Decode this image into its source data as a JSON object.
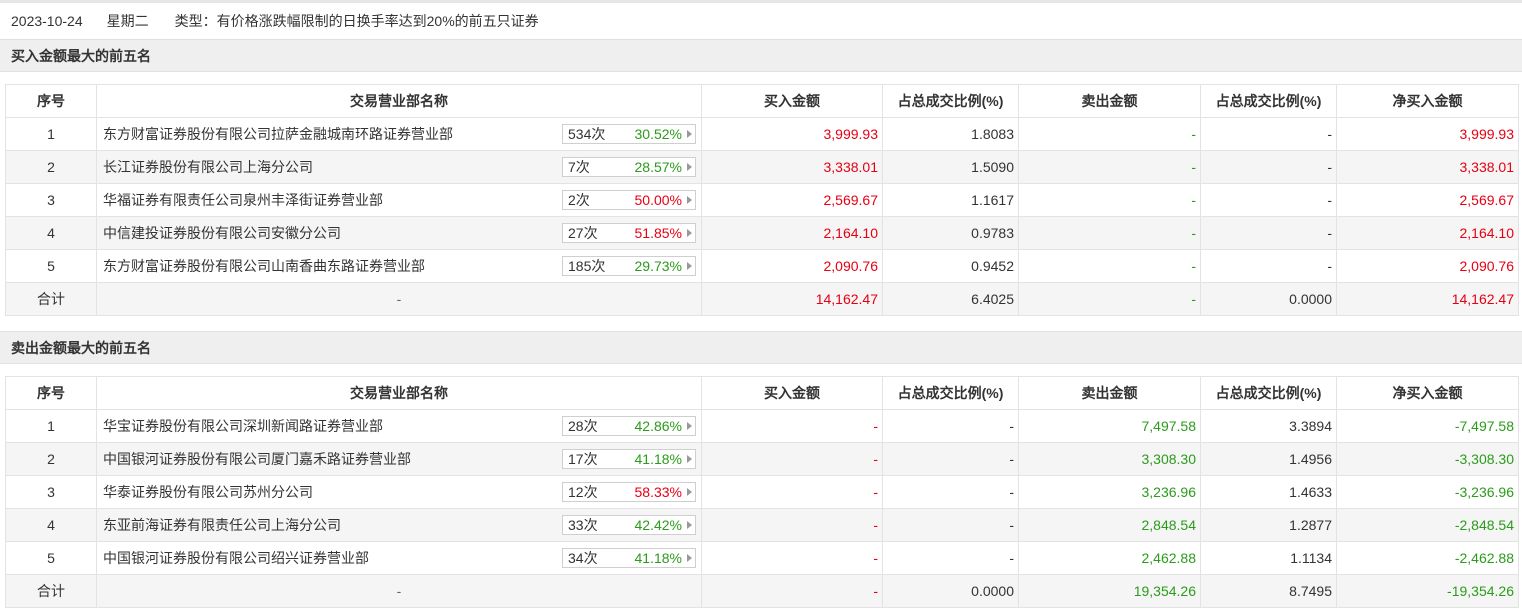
{
  "info": {
    "date": "2023-10-24",
    "weekday": "星期二",
    "type_text": "类型：有价格涨跌幅限制的日换手率达到20%的前五只证券"
  },
  "columns": [
    "序号",
    "交易营业部名称",
    "买入金额",
    "占总成交比例(%)",
    "卖出金额",
    "占总成交比例(%)",
    "净买入金额"
  ],
  "colors": {
    "up": "#e60012",
    "down": "#2b9b1b"
  },
  "buy_section": {
    "title": "买入金额最大的前五名",
    "rows": [
      {
        "no": "1",
        "name": "东方财富证券股份有限公司拉萨金融城南环路证券营业部",
        "count": "534次",
        "pct": "30.52%",
        "pct_dir": "green",
        "buy": "3,999.93",
        "buy_ratio": "1.8083",
        "sell": "-",
        "sell_ratio": "-",
        "net": "3,999.93"
      },
      {
        "no": "2",
        "name": "长江证券股份有限公司上海分公司",
        "count": "7次",
        "pct": "28.57%",
        "pct_dir": "green",
        "buy": "3,338.01",
        "buy_ratio": "1.5090",
        "sell": "-",
        "sell_ratio": "-",
        "net": "3,338.01"
      },
      {
        "no": "3",
        "name": "华福证券有限责任公司泉州丰泽街证券营业部",
        "count": "2次",
        "pct": "50.00%",
        "pct_dir": "red",
        "buy": "2,569.67",
        "buy_ratio": "1.1617",
        "sell": "-",
        "sell_ratio": "-",
        "net": "2,569.67"
      },
      {
        "no": "4",
        "name": "中信建投证券股份有限公司安徽分公司",
        "count": "27次",
        "pct": "51.85%",
        "pct_dir": "red",
        "buy": "2,164.10",
        "buy_ratio": "0.9783",
        "sell": "-",
        "sell_ratio": "-",
        "net": "2,164.10"
      },
      {
        "no": "5",
        "name": "东方财富证券股份有限公司山南香曲东路证券营业部",
        "count": "185次",
        "pct": "29.73%",
        "pct_dir": "green",
        "buy": "2,090.76",
        "buy_ratio": "0.9452",
        "sell": "-",
        "sell_ratio": "-",
        "net": "2,090.76"
      }
    ],
    "total": {
      "label": "合计",
      "name": "-",
      "buy": "14,162.47",
      "buy_ratio": "6.4025",
      "sell": "-",
      "sell_ratio": "0.0000",
      "net": "14,162.47"
    }
  },
  "sell_section": {
    "title": "卖出金额最大的前五名",
    "rows": [
      {
        "no": "1",
        "name": "华宝证券股份有限公司深圳新闻路证券营业部",
        "count": "28次",
        "pct": "42.86%",
        "pct_dir": "green",
        "buy": "-",
        "buy_ratio": "-",
        "sell": "7,497.58",
        "sell_ratio": "3.3894",
        "net": "-7,497.58"
      },
      {
        "no": "2",
        "name": "中国银河证券股份有限公司厦门嘉禾路证券营业部",
        "count": "17次",
        "pct": "41.18%",
        "pct_dir": "green",
        "buy": "-",
        "buy_ratio": "-",
        "sell": "3,308.30",
        "sell_ratio": "1.4956",
        "net": "-3,308.30"
      },
      {
        "no": "3",
        "name": "华泰证券股份有限公司苏州分公司",
        "count": "12次",
        "pct": "58.33%",
        "pct_dir": "red",
        "buy": "-",
        "buy_ratio": "-",
        "sell": "3,236.96",
        "sell_ratio": "1.4633",
        "net": "-3,236.96"
      },
      {
        "no": "4",
        "name": "东亚前海证券有限责任公司上海分公司",
        "count": "33次",
        "pct": "42.42%",
        "pct_dir": "green",
        "buy": "-",
        "buy_ratio": "-",
        "sell": "2,848.54",
        "sell_ratio": "1.2877",
        "net": "-2,848.54"
      },
      {
        "no": "5",
        "name": "中国银河证券股份有限公司绍兴证券营业部",
        "count": "34次",
        "pct": "41.18%",
        "pct_dir": "green",
        "buy": "-",
        "buy_ratio": "-",
        "sell": "2,462.88",
        "sell_ratio": "1.1134",
        "net": "-2,462.88"
      }
    ],
    "total": {
      "label": "合计",
      "name": "-",
      "buy": "-",
      "buy_ratio": "0.0000",
      "sell": "19,354.26",
      "sell_ratio": "8.7495",
      "net": "-19,354.26"
    }
  }
}
